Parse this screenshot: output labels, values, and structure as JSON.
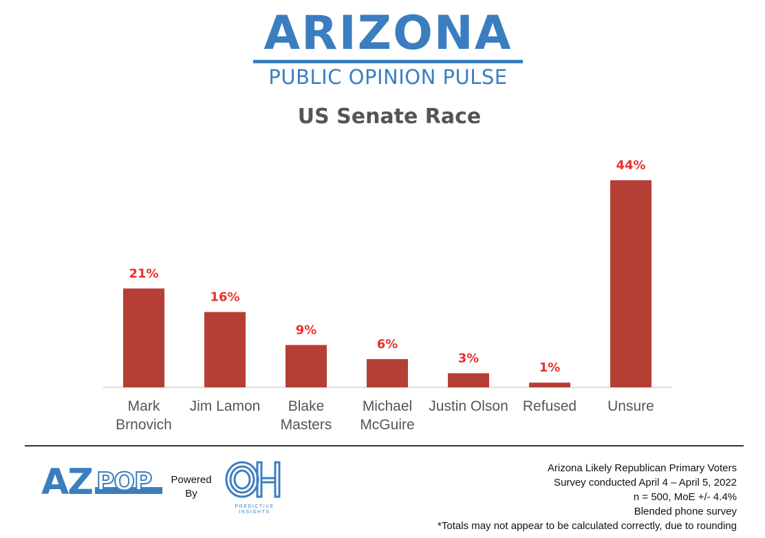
{
  "brand": {
    "title": "ARIZONA",
    "subtitle": "PUBLIC OPINION PULSE",
    "color": "#3b7ec0"
  },
  "footer": {
    "logo_text": "AZPOP",
    "powered_by": [
      "Powered",
      "By"
    ],
    "partner_logo_text": "OH",
    "partner_name": "PREDICTIVE INSIGHTS",
    "notes": [
      "Arizona Likely Republican Primary Voters",
      "Survey conducted April 4 – April 5, 2022",
      "n = 500, MoE +/- 4.4%",
      "Blended phone survey",
      "*Totals may not appear to be calculated correctly, due to rounding"
    ]
  },
  "chart_data": {
    "type": "bar",
    "title": "US Senate Race",
    "categories": [
      [
        "Mark",
        "Brnovich"
      ],
      [
        "Jim Lamon"
      ],
      [
        "Blake",
        "Masters"
      ],
      [
        "Michael",
        "McGuire"
      ],
      [
        "Justin Olson"
      ],
      [
        "Refused"
      ],
      [
        "Unsure"
      ]
    ],
    "values": [
      21,
      16,
      9,
      6,
      3,
      1,
      44
    ],
    "data_labels": [
      "21%",
      "16%",
      "9%",
      "6%",
      "3%",
      "1%",
      "44%"
    ],
    "unit": "%",
    "ylim": [
      0,
      44
    ],
    "bar_color": "#b63f35",
    "label_color": "#e8312a",
    "grid": false,
    "legend": "none"
  }
}
